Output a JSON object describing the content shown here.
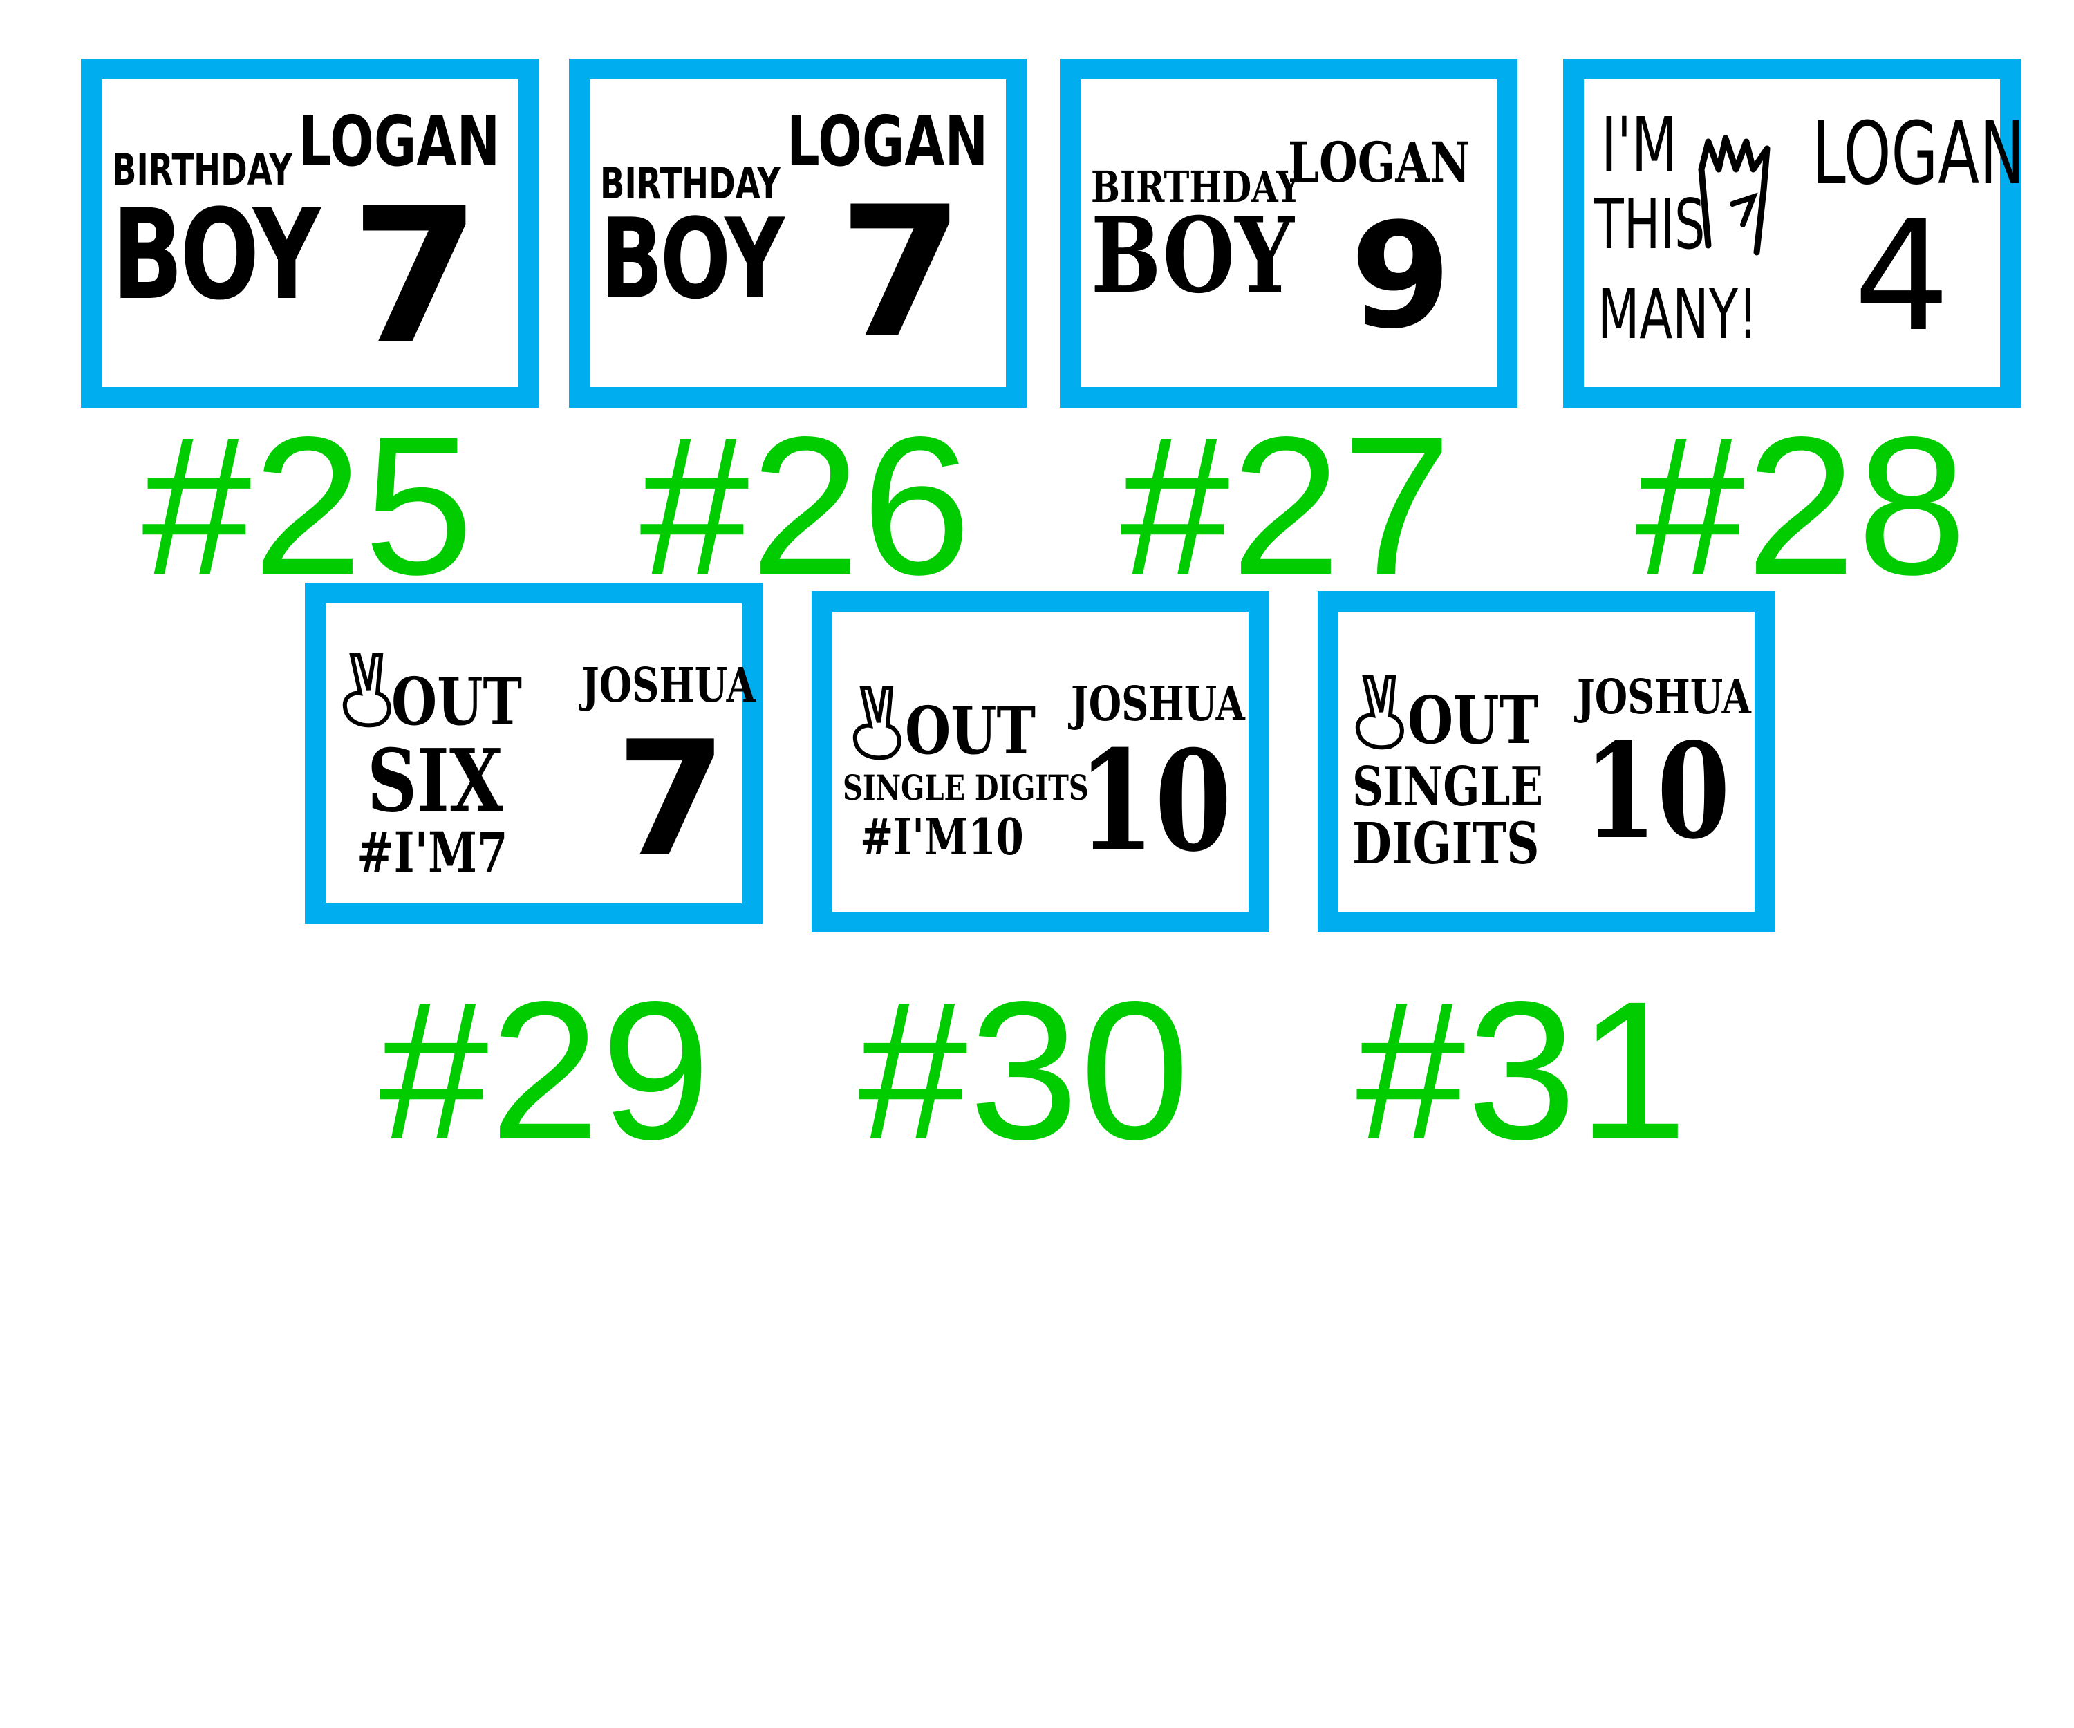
{
  "colors": {
    "frame": "#00AEEF",
    "label": "#00CC00",
    "text": "#000000"
  },
  "cards": [
    {
      "label": "#25",
      "lines": [
        "BIRTHDAY",
        "BOY"
      ],
      "name": "LOGAN",
      "age": "7"
    },
    {
      "label": "#26",
      "lines": [
        "BIRTHDAY",
        "BOY"
      ],
      "name": "LOGAN",
      "age": "7"
    },
    {
      "label": "#27",
      "lines": [
        "BIRTHDAY",
        "BOY"
      ],
      "name": "LOGAN",
      "age": "9"
    },
    {
      "label": "#28",
      "lines": [
        "I'M",
        "THIS",
        "MANY!"
      ],
      "name": "LOGAN",
      "age": "4",
      "icon": "four-fingers-hand-icon"
    },
    {
      "label": "#29",
      "lines": [
        "OUT",
        "SIX",
        "#I'M7"
      ],
      "name": "JOSHUA",
      "age": "7",
      "icon": "peace-hand-icon"
    },
    {
      "label": "#30",
      "lines": [
        "OUT",
        "SINGLE DIGITS",
        "#I'M10"
      ],
      "name": "JOSHUA",
      "age": "10",
      "icon": "peace-hand-icon"
    },
    {
      "label": "#31",
      "lines": [
        "OUT",
        "SINGLE",
        "DIGITS"
      ],
      "name": "JOSHUA",
      "age": "10",
      "icon": "peace-hand-icon"
    }
  ]
}
